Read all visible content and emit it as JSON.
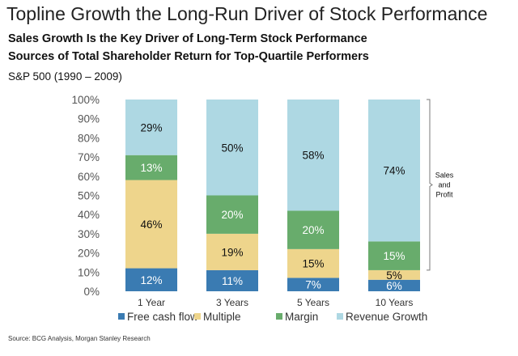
{
  "header": {
    "title": "Topline Growth the Long-Run Driver of Stock Performance",
    "subtitle_1": "Sales Growth Is the Key Driver of Long-Term Stock Performance",
    "subtitle_2": "Sources of Total Shareholder Return for Top-Quartile Performers",
    "note": "S&P 500 (1990 – 2009)"
  },
  "footer": {
    "source": "Source: BCG Analysis, Morgan Stanley Research"
  },
  "chart_data": {
    "type": "bar",
    "stacked": true,
    "categories": [
      "1 Year",
      "3 Years",
      "5 Years",
      "10 Years"
    ],
    "series": [
      {
        "name": "Free cash flow",
        "color": "#3a7bb2",
        "values": [
          12,
          11,
          7,
          6
        ],
        "labels": [
          "12%",
          "11%",
          "7%",
          "6%"
        ]
      },
      {
        "name": "Multiple",
        "color": "#eed58c",
        "values": [
          46,
          19,
          15,
          5
        ],
        "labels": [
          "46%",
          "19%",
          "15%",
          "5%"
        ]
      },
      {
        "name": "Margin",
        "color": "#68ac6c",
        "values": [
          13,
          20,
          20,
          15
        ],
        "labels": [
          "13%",
          "20%",
          "20%",
          "15%"
        ]
      },
      {
        "name": "Revenue Growth",
        "color": "#aed8e3",
        "values": [
          29,
          50,
          58,
          74
        ],
        "labels": [
          "29%",
          "50%",
          "58%",
          "74%"
        ]
      }
    ],
    "y_ticks": [
      "0%",
      "10%",
      "20%",
      "30%",
      "40%",
      "50%",
      "60%",
      "70%",
      "80%",
      "90%",
      "100%"
    ],
    "ylim": [
      0,
      100
    ],
    "legend_position": "bottom",
    "annotation": {
      "lines": [
        "Sales",
        "and",
        "Profit"
      ],
      "category": "10 Years",
      "series": [
        "Margin",
        "Revenue Growth"
      ]
    }
  }
}
